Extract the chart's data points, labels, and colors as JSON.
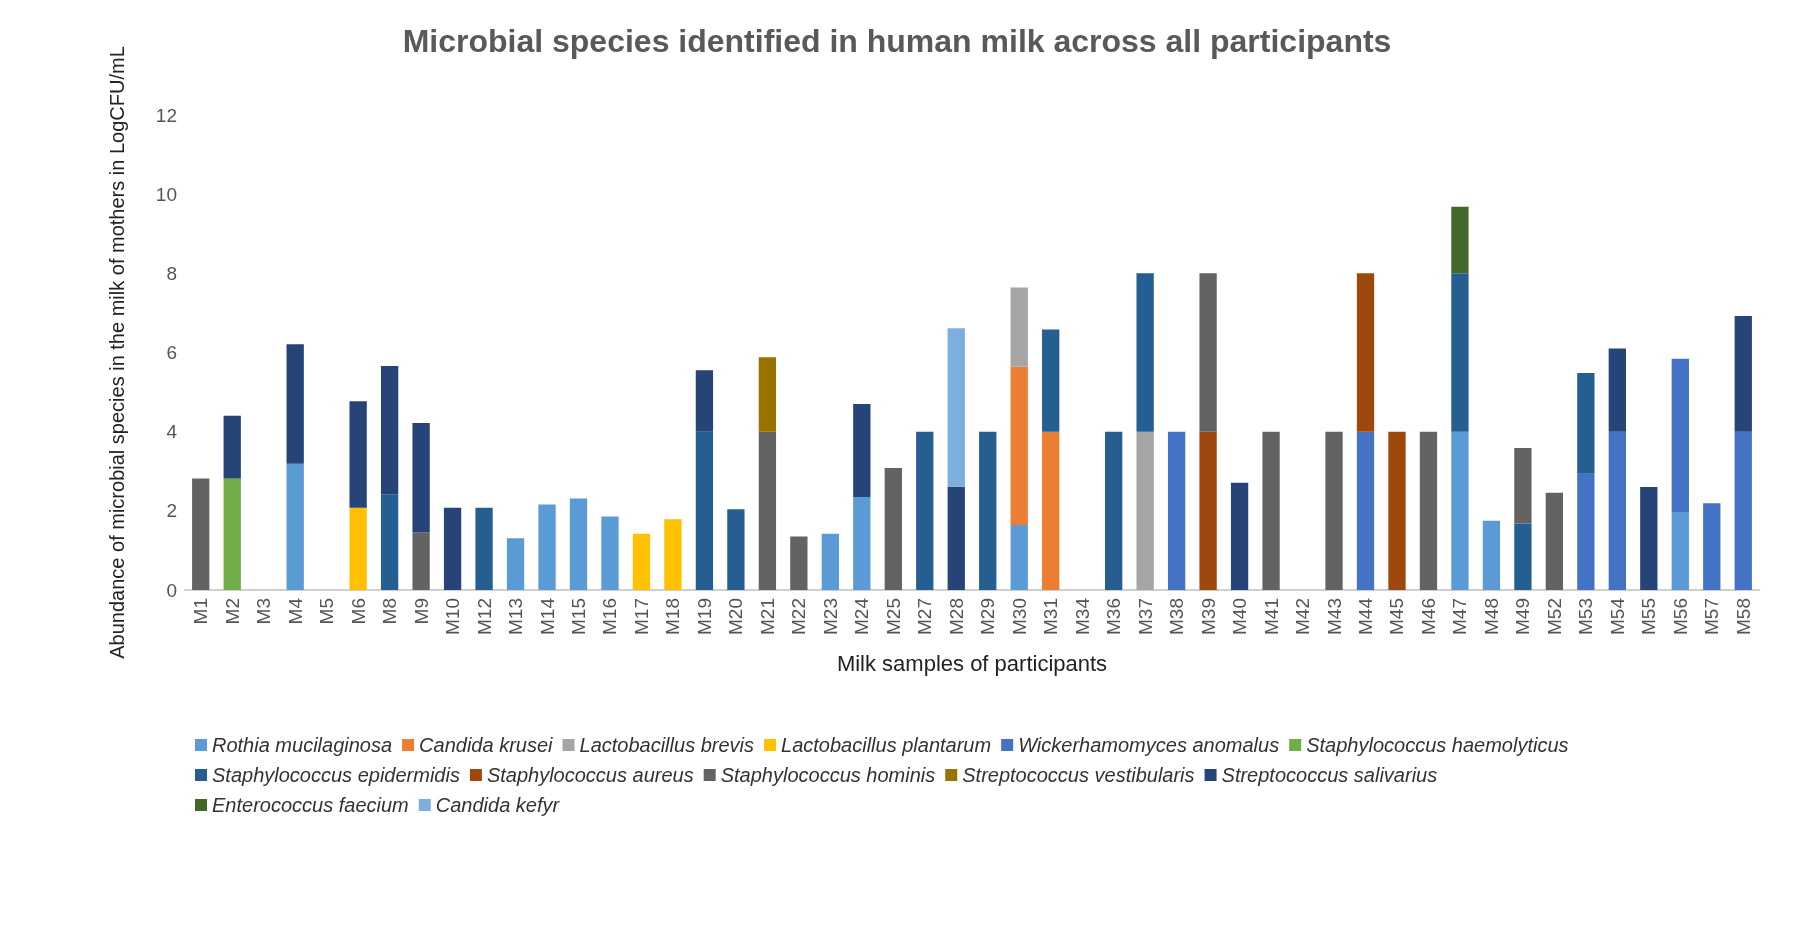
{
  "chart_data": {
    "type": "bar",
    "stacked": true,
    "title": "Microbial species identified in human milk across all participants",
    "xlabel": "Milk samples of participants",
    "ylabel": "Abundance of microbial species in the milk of mothers in LogCFU/mL",
    "categories": [
      "M1",
      "M2",
      "M3",
      "M4",
      "M5",
      "M6",
      "M8",
      "M9",
      "M10",
      "M12",
      "M13",
      "M14",
      "M15",
      "M16",
      "M17",
      "M18",
      "M19",
      "M20",
      "M21",
      "M22",
      "M23",
      "M24",
      "M25",
      "M27",
      "M28",
      "M29",
      "M30",
      "M31",
      "M34",
      "M36",
      "M37",
      "M38",
      "M39",
      "M40",
      "M41",
      "M42",
      "M43",
      "M44",
      "M45",
      "M46",
      "M47",
      "M48",
      "M49",
      "M52",
      "M53",
      "M54",
      "M55",
      "M56",
      "M57",
      "M58"
    ],
    "ylim": [
      0,
      12
    ],
    "yticks": [
      0,
      2,
      4,
      6,
      8,
      10,
      12
    ],
    "grid": false,
    "legend": "bottom",
    "series": [
      {
        "name": "Rothia mucilaginosa",
        "color": "#5b9bd5",
        "values": [
          null,
          null,
          null,
          3.19,
          null,
          null,
          null,
          null,
          null,
          null,
          1.31,
          2.16,
          2.31,
          1.86,
          null,
          null,
          null,
          null,
          null,
          null,
          1.42,
          2.35,
          null,
          null,
          null,
          null,
          1.64,
          null,
          null,
          null,
          null,
          null,
          null,
          null,
          null,
          null,
          null,
          null,
          null,
          null,
          4,
          1.75,
          null,
          null,
          null,
          null,
          null,
          1.97,
          null,
          null
        ]
      },
      {
        "name": "Candida krusei",
        "color": "#ed7d31",
        "values": [
          null,
          null,
          null,
          null,
          null,
          null,
          null,
          null,
          null,
          null,
          null,
          null,
          null,
          null,
          null,
          null,
          null,
          null,
          null,
          null,
          null,
          null,
          null,
          null,
          null,
          null,
          4,
          4,
          null,
          null,
          null,
          null,
          null,
          null,
          null,
          null,
          null,
          null,
          null,
          null,
          null,
          null,
          null,
          null,
          null,
          null,
          null,
          null,
          null,
          null
        ]
      },
      {
        "name": "Lactobacillus brevis",
        "color": "#a5a5a5",
        "values": [
          null,
          null,
          null,
          null,
          null,
          null,
          null,
          null,
          null,
          null,
          null,
          null,
          null,
          null,
          null,
          null,
          null,
          null,
          null,
          null,
          null,
          null,
          null,
          null,
          null,
          null,
          2,
          null,
          null,
          null,
          4,
          null,
          null,
          null,
          null,
          null,
          null,
          null,
          null,
          null,
          null,
          null,
          null,
          null,
          null,
          null,
          null,
          null,
          null,
          null
        ]
      },
      {
        "name": "Lactobacillus plantarum",
        "color": "#ffc000",
        "values": [
          null,
          null,
          null,
          null,
          null,
          2.08,
          null,
          null,
          null,
          null,
          null,
          null,
          null,
          null,
          1.42,
          1.79,
          null,
          null,
          null,
          null,
          null,
          null,
          null,
          null,
          null,
          null,
          null,
          null,
          null,
          null,
          null,
          null,
          null,
          null,
          null,
          null,
          null,
          null,
          null,
          null,
          null,
          null,
          null,
          null,
          null,
          null,
          null,
          null,
          null,
          null
        ]
      },
      {
        "name": "Wickerhamomyces anomalus",
        "color": "#4472c4",
        "values": [
          null,
          null,
          null,
          null,
          null,
          null,
          null,
          null,
          null,
          null,
          null,
          null,
          null,
          null,
          null,
          null,
          null,
          null,
          null,
          null,
          null,
          null,
          null,
          null,
          null,
          null,
          null,
          null,
          null,
          null,
          null,
          4,
          null,
          null,
          null,
          null,
          null,
          4,
          null,
          null,
          null,
          null,
          null,
          null,
          2.94,
          4,
          null,
          3.87,
          2.19,
          4
        ]
      },
      {
        "name": "Staphylococcus haemolyticus",
        "color": "#70ad47",
        "values": [
          null,
          2.82,
          null,
          null,
          null,
          null,
          null,
          null,
          null,
          null,
          null,
          null,
          null,
          null,
          null,
          null,
          null,
          null,
          null,
          null,
          null,
          null,
          null,
          null,
          null,
          null,
          null,
          null,
          null,
          null,
          null,
          null,
          null,
          null,
          null,
          null,
          null,
          null,
          null,
          null,
          null,
          null,
          null,
          null,
          null,
          null,
          null,
          null,
          null,
          null
        ]
      },
      {
        "name": "Staphylococcus epidermidis",
        "color": "#255e91",
        "values": [
          null,
          null,
          null,
          null,
          null,
          null,
          2.42,
          null,
          null,
          2.08,
          null,
          null,
          null,
          null,
          null,
          null,
          4,
          2.04,
          null,
          null,
          null,
          null,
          null,
          4,
          null,
          4,
          null,
          2.58,
          null,
          4,
          4,
          null,
          null,
          null,
          null,
          null,
          null,
          null,
          null,
          null,
          4,
          null,
          1.68,
          null,
          2.54,
          null,
          null,
          null,
          null,
          null
        ]
      },
      {
        "name": "Staphylococcus aureus",
        "color": "#9e480e",
        "values": [
          null,
          null,
          null,
          null,
          null,
          null,
          null,
          null,
          null,
          null,
          null,
          null,
          null,
          null,
          null,
          null,
          null,
          null,
          null,
          null,
          null,
          null,
          null,
          null,
          null,
          null,
          null,
          null,
          null,
          null,
          null,
          null,
          4,
          null,
          null,
          null,
          null,
          4,
          4,
          null,
          null,
          null,
          null,
          null,
          null,
          null,
          null,
          null,
          null,
          null
        ]
      },
      {
        "name": "Staphylococcus hominis",
        "color": "#636363",
        "values": [
          2.82,
          null,
          null,
          null,
          null,
          null,
          null,
          1.46,
          null,
          null,
          null,
          null,
          null,
          null,
          null,
          null,
          null,
          null,
          4,
          1.35,
          null,
          null,
          3.08,
          null,
          null,
          null,
          null,
          null,
          null,
          null,
          null,
          null,
          4,
          null,
          4,
          null,
          4,
          null,
          null,
          4,
          null,
          null,
          1.91,
          2.46,
          null,
          null,
          null,
          null,
          null,
          null
        ]
      },
      {
        "name": "Streptococcus vestibularis",
        "color": "#997300",
        "values": [
          null,
          null,
          null,
          null,
          null,
          null,
          null,
          null,
          null,
          null,
          null,
          null,
          null,
          null,
          null,
          null,
          null,
          null,
          1.88,
          null,
          null,
          null,
          null,
          null,
          null,
          null,
          null,
          null,
          null,
          null,
          null,
          null,
          null,
          null,
          null,
          null,
          null,
          null,
          null,
          null,
          null,
          null,
          null,
          null,
          null,
          null,
          null,
          null,
          null,
          null
        ]
      },
      {
        "name": "Streptococcus salivarius",
        "color": "#264478",
        "values": [
          null,
          1.58,
          null,
          3.02,
          null,
          2.69,
          3.24,
          2.76,
          2.08,
          null,
          null,
          null,
          null,
          null,
          null,
          null,
          1.55,
          null,
          null,
          null,
          null,
          2.35,
          null,
          null,
          2.61,
          null,
          null,
          null,
          null,
          null,
          null,
          null,
          null,
          2.71,
          null,
          null,
          null,
          null,
          null,
          null,
          null,
          null,
          null,
          null,
          null,
          2.1,
          2.6,
          null,
          null,
          2.92
        ]
      },
      {
        "name": "Enterococcus faecium",
        "color": "#43682b",
        "values": [
          null,
          null,
          null,
          null,
          null,
          null,
          null,
          null,
          null,
          null,
          null,
          null,
          null,
          null,
          null,
          null,
          null,
          null,
          null,
          null,
          null,
          null,
          null,
          null,
          null,
          null,
          null,
          null,
          null,
          null,
          null,
          null,
          null,
          null,
          null,
          null,
          null,
          null,
          null,
          null,
          1.68,
          null,
          null,
          null,
          null,
          null,
          null,
          null,
          null,
          null
        ]
      },
      {
        "name": "Candida kefyr",
        "color": "#7cafdd",
        "values": [
          null,
          null,
          null,
          null,
          null,
          null,
          null,
          null,
          null,
          null,
          null,
          null,
          null,
          null,
          null,
          null,
          null,
          null,
          null,
          null,
          null,
          null,
          null,
          null,
          4,
          null,
          null,
          null,
          null,
          null,
          null,
          null,
          null,
          null,
          null,
          null,
          null,
          null,
          null,
          null,
          null,
          null,
          null,
          null,
          null,
          null,
          null,
          null,
          null,
          null
        ]
      }
    ]
  }
}
